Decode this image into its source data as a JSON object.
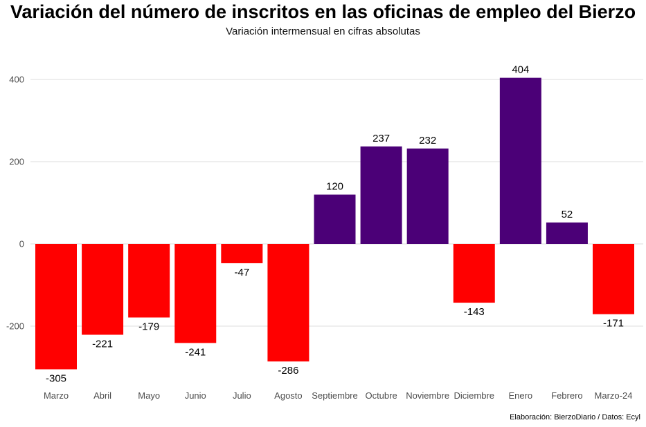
{
  "chart_data": {
    "type": "bar",
    "title": "Variación del número de inscritos en las oficinas de empleo del Bierzo",
    "subtitle": "Variación intermensual en cifras absolutas",
    "caption": "Elaboración: BierzoDiario / Datos: Ecyl",
    "categories": [
      "Marzo",
      "Abril",
      "Mayo",
      "Junio",
      "Julio",
      "Agosto",
      "Septiembre",
      "Octubre",
      "Noviembre",
      "Diciembre",
      "Enero",
      "Febrero",
      "Marzo-24"
    ],
    "values": [
      -305,
      -221,
      -179,
      -241,
      -47,
      -286,
      120,
      237,
      232,
      -143,
      404,
      52,
      -171
    ],
    "data_labels": [
      "-305",
      "-221",
      "-179",
      "-241",
      "-47",
      "-286",
      "120",
      "237",
      "232",
      "-143",
      "404",
      "52",
      "-171"
    ],
    "yticks": [
      -200,
      0,
      200,
      400
    ],
    "ylim": [
      -340,
      440
    ],
    "grid": true,
    "legend": "none",
    "colors": {
      "positive": "#4b0077",
      "negative": "#ff0000",
      "grid": "#dcdcdc"
    }
  }
}
